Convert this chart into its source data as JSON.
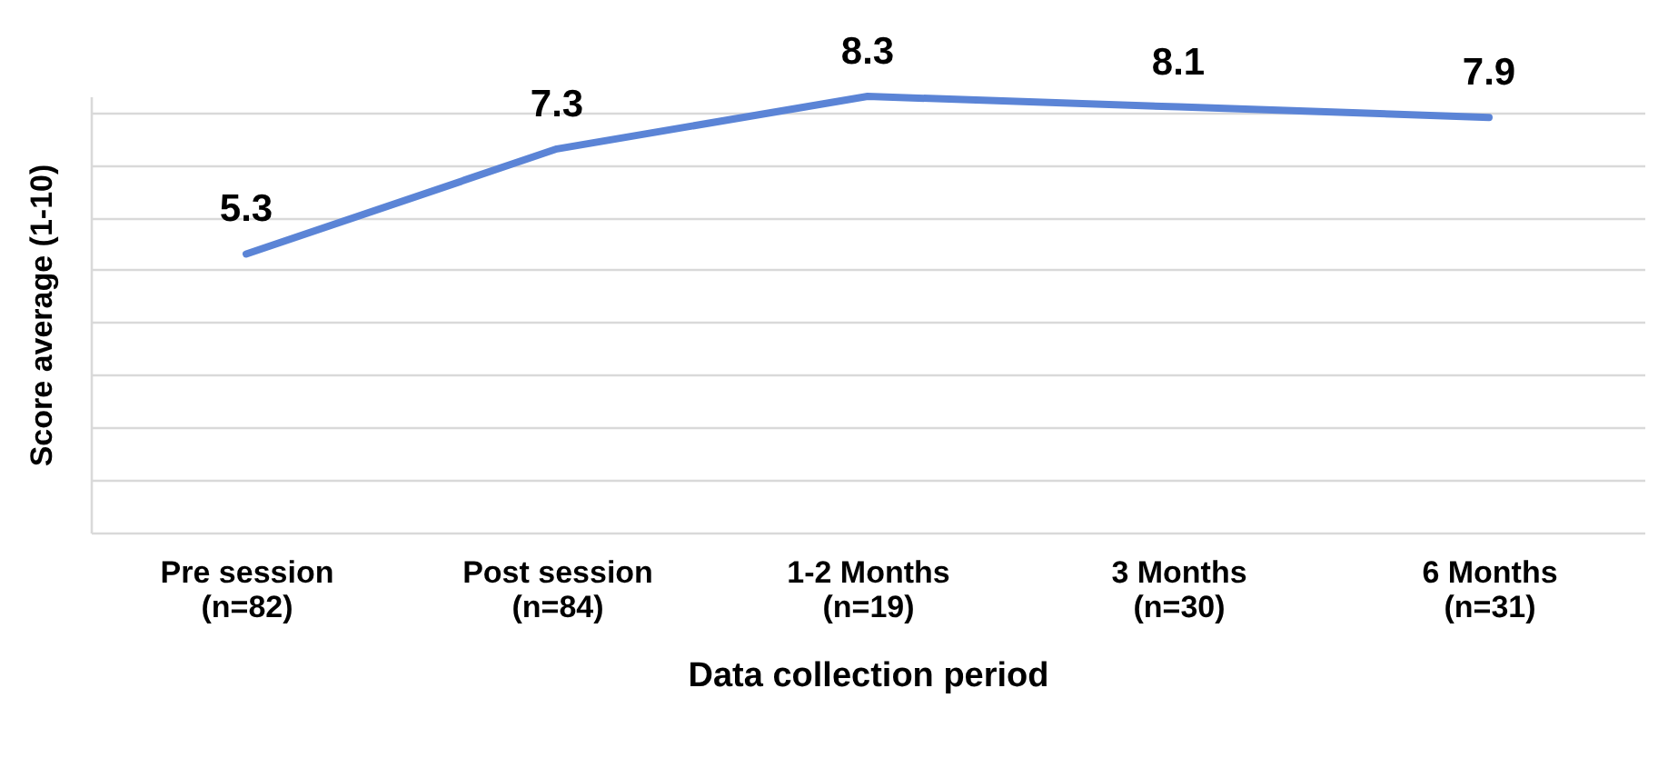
{
  "chart_data": {
    "type": "line",
    "xlabel": "Data collection period",
    "ylabel": "Score average (1-10)",
    "categories": [
      "Pre session\n(n=82)",
      "Post session\n(n=84)",
      "1-2 Months\n(n=19)",
      "3 Months\n(n=30)",
      "6 Months\n(n=31)"
    ],
    "series": [
      {
        "color": "#5b84d6",
        "values": [
          5.3,
          7.3,
          8.3,
          8.1,
          7.9
        ]
      }
    ],
    "grid": "y",
    "data_labels": true,
    "marker": "none",
    "line_style": "solid",
    "tick_labels": "x"
  }
}
